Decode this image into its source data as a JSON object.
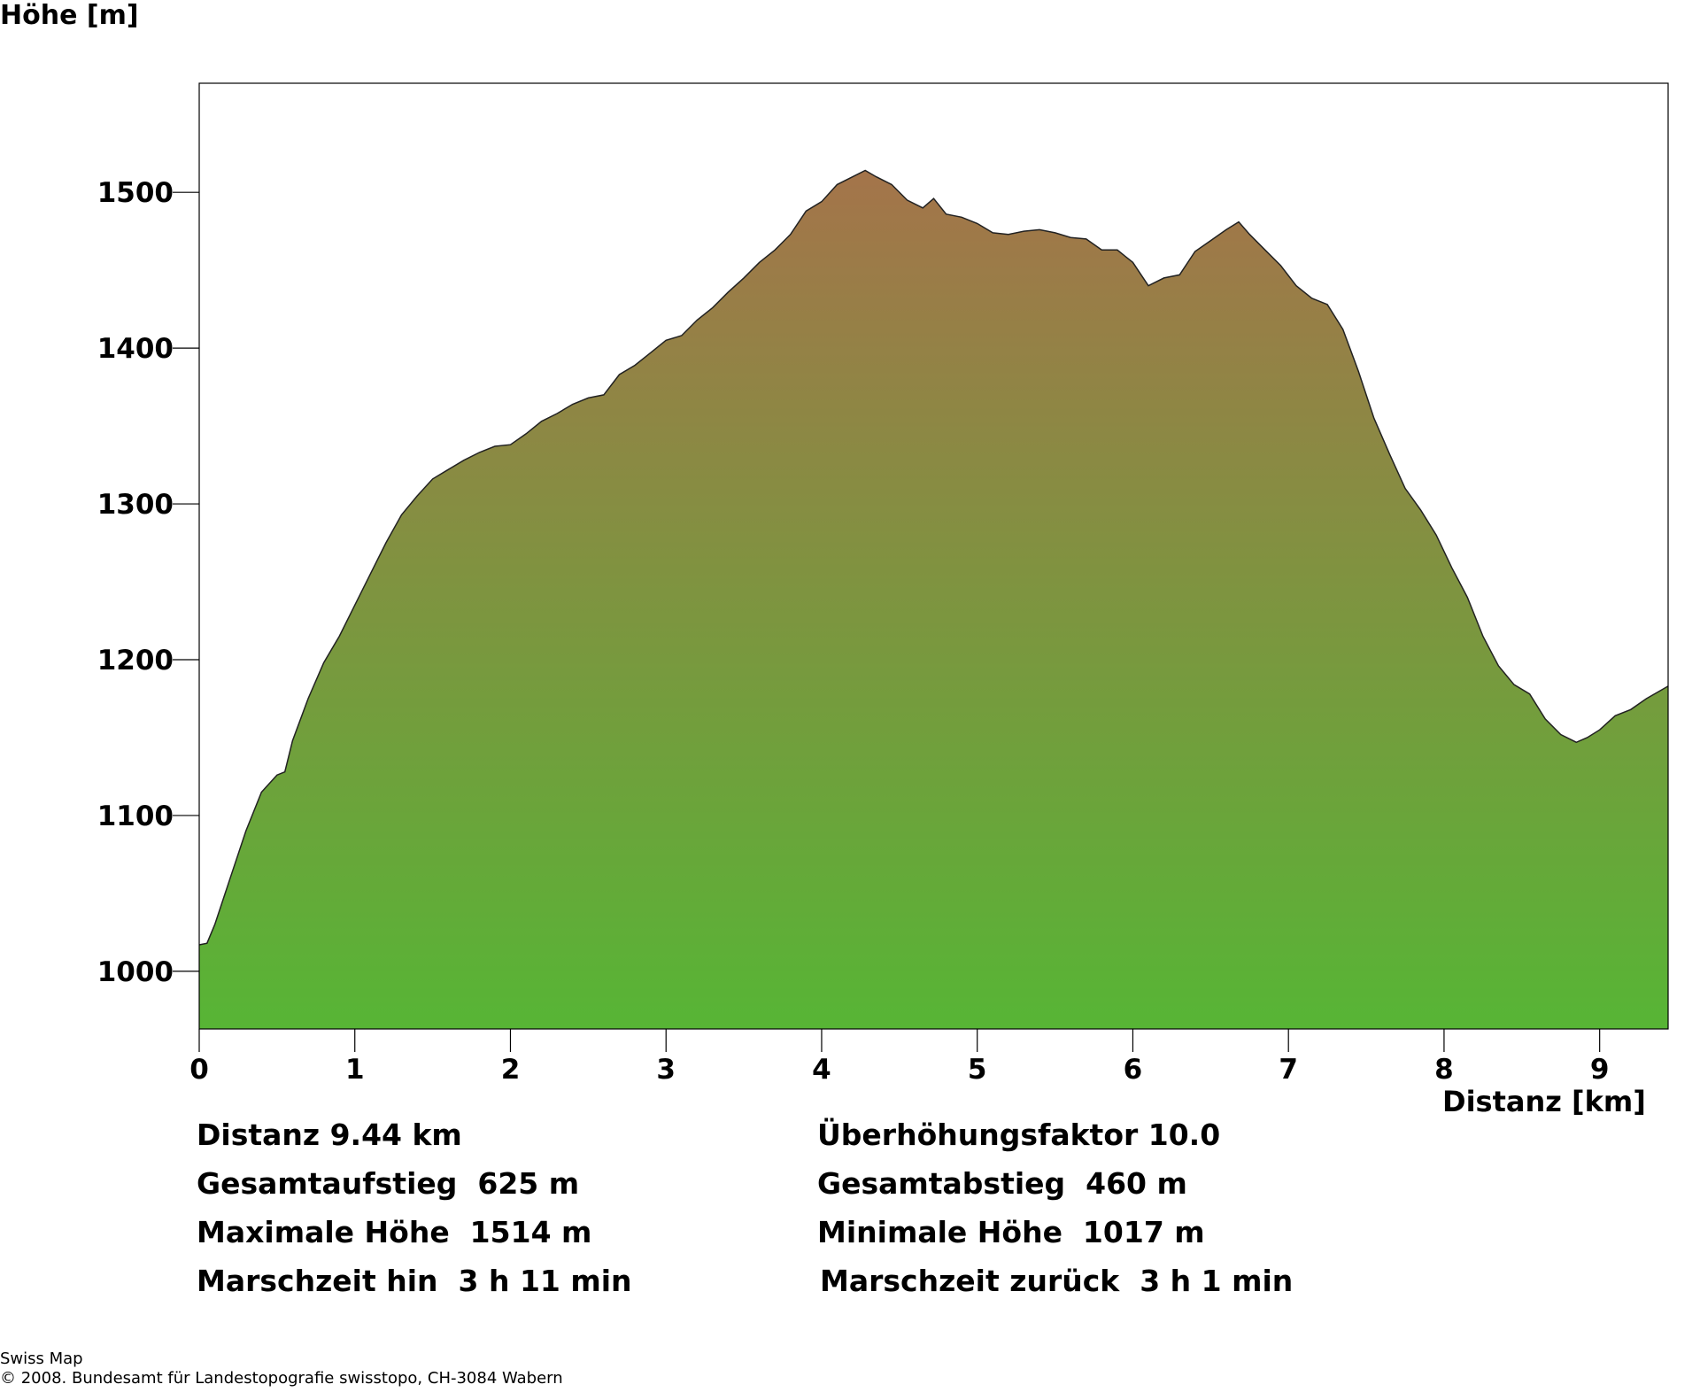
{
  "chart_data": {
    "type": "area",
    "ylabel": "Höhe [m]",
    "xlabel": "Distanz [km]",
    "xlim": [
      0,
      9.44
    ],
    "ylim": [
      963,
      1570
    ],
    "xticks": [
      0,
      1,
      2,
      3,
      4,
      5,
      6,
      7,
      8,
      9
    ],
    "yticks": [
      1000,
      1100,
      1200,
      1300,
      1400,
      1500
    ],
    "grid": false,
    "colors": {
      "top": "#a4744a",
      "bottom": "#57b535",
      "line": "#222222"
    },
    "x": [
      0,
      0.05,
      0.1,
      0.2,
      0.3,
      0.4,
      0.5,
      0.55,
      0.6,
      0.7,
      0.8,
      0.9,
      1.0,
      1.1,
      1.2,
      1.3,
      1.4,
      1.5,
      1.6,
      1.7,
      1.8,
      1.9,
      2.0,
      2.1,
      2.2,
      2.3,
      2.4,
      2.5,
      2.6,
      2.7,
      2.8,
      2.9,
      3.0,
      3.1,
      3.2,
      3.3,
      3.4,
      3.5,
      3.6,
      3.7,
      3.8,
      3.9,
      4.0,
      4.1,
      4.2,
      4.28,
      4.35,
      4.45,
      4.55,
      4.65,
      4.72,
      4.8,
      4.9,
      5.0,
      5.1,
      5.2,
      5.3,
      5.4,
      5.5,
      5.6,
      5.7,
      5.8,
      5.9,
      6.0,
      6.1,
      6.2,
      6.3,
      6.4,
      6.5,
      6.6,
      6.68,
      6.75,
      6.85,
      6.95,
      7.05,
      7.15,
      7.25,
      7.35,
      7.45,
      7.55,
      7.65,
      7.75,
      7.85,
      7.95,
      8.05,
      8.15,
      8.25,
      8.35,
      8.45,
      8.55,
      8.65,
      8.75,
      8.85,
      8.92,
      9.0,
      9.1,
      9.2,
      9.3,
      9.44
    ],
    "y": [
      1017,
      1018,
      1030,
      1060,
      1090,
      1115,
      1126,
      1128,
      1148,
      1175,
      1198,
      1215,
      1235,
      1255,
      1275,
      1293,
      1305,
      1316,
      1322,
      1328,
      1333,
      1337,
      1338,
      1345,
      1353,
      1358,
      1364,
      1368,
      1370,
      1383,
      1389,
      1397,
      1405,
      1408,
      1418,
      1426,
      1436,
      1445,
      1455,
      1463,
      1473,
      1488,
      1494,
      1505,
      1510,
      1514,
      1510,
      1505,
      1495,
      1490,
      1496,
      1486,
      1484,
      1480,
      1474,
      1473,
      1475,
      1476,
      1474,
      1471,
      1470,
      1463,
      1463,
      1455,
      1440,
      1445,
      1447,
      1462,
      1469,
      1476,
      1481,
      1473,
      1463,
      1453,
      1440,
      1432,
      1428,
      1412,
      1385,
      1355,
      1332,
      1310,
      1296,
      1280,
      1259,
      1240,
      1215,
      1196,
      1184,
      1178,
      1162,
      1152,
      1147,
      1150,
      1155,
      1164,
      1168,
      1175,
      1183
    ]
  },
  "stats": {
    "left": [
      "Distanz 9.44 km",
      "Gesamtaufstieg  625 m",
      "Maximale Höhe  1514 m",
      "Marschzeit hin  3 h 11 min"
    ],
    "right": [
      "Überhöhungsfaktor 10.0",
      "Gesamtabstieg  460 m",
      "Minimale Höhe  1017 m",
      "Marschzeit zurück  3 h 1 min"
    ]
  },
  "credits": {
    "line1": "Swiss Map",
    "line2": "© 2008. Bundesamt für Landestopografie swisstopo, CH-3084 Wabern"
  }
}
